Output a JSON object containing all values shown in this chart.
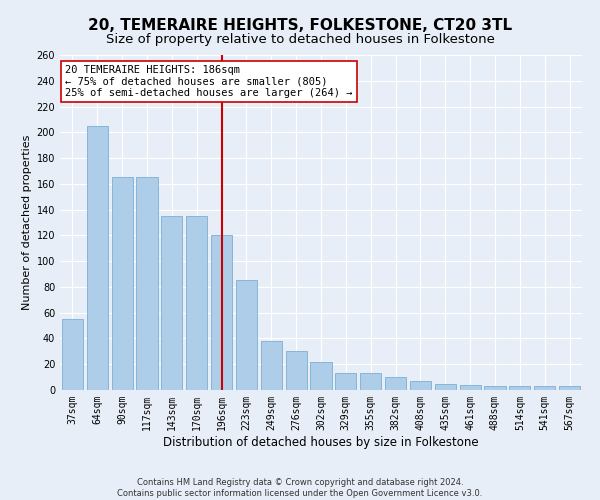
{
  "title": "20, TEMERAIRE HEIGHTS, FOLKESTONE, CT20 3TL",
  "subtitle": "Size of property relative to detached houses in Folkestone",
  "xlabel": "Distribution of detached houses by size in Folkestone",
  "ylabel": "Number of detached properties",
  "footer_line1": "Contains HM Land Registry data © Crown copyright and database right 2024.",
  "footer_line2": "Contains public sector information licensed under the Open Government Licence v3.0.",
  "categories": [
    "37sqm",
    "64sqm",
    "90sqm",
    "117sqm",
    "143sqm",
    "170sqm",
    "196sqm",
    "223sqm",
    "249sqm",
    "276sqm",
    "302sqm",
    "329sqm",
    "355sqm",
    "382sqm",
    "408sqm",
    "435sqm",
    "461sqm",
    "488sqm",
    "514sqm",
    "541sqm",
    "567sqm"
  ],
  "values": [
    55,
    205,
    165,
    165,
    135,
    135,
    120,
    85,
    38,
    30,
    22,
    13,
    13,
    10,
    7,
    5,
    4,
    3,
    3,
    3,
    3
  ],
  "bar_color": "#aecde8",
  "bar_edge_color": "#7aafd4",
  "vline_index": 6,
  "vline_color": "#cc0000",
  "annotation_title": "20 TEMERAIRE HEIGHTS: 186sqm",
  "annotation_line1": "← 75% of detached houses are smaller (805)",
  "annotation_line2": "25% of semi-detached houses are larger (264) →",
  "annotation_box_color": "#ffffff",
  "annotation_box_edge_color": "#cc0000",
  "ylim": [
    0,
    260
  ],
  "yticks": [
    0,
    20,
    40,
    60,
    80,
    100,
    120,
    140,
    160,
    180,
    200,
    220,
    240,
    260
  ],
  "background_color": "#e8eef7",
  "plot_bg_color": "#e8eef7",
  "grid_color": "#ffffff",
  "title_fontsize": 11,
  "subtitle_fontsize": 9.5,
  "xlabel_fontsize": 8.5,
  "ylabel_fontsize": 8,
  "tick_fontsize": 7,
  "annotation_fontsize": 7.5,
  "footer_fontsize": 6
}
